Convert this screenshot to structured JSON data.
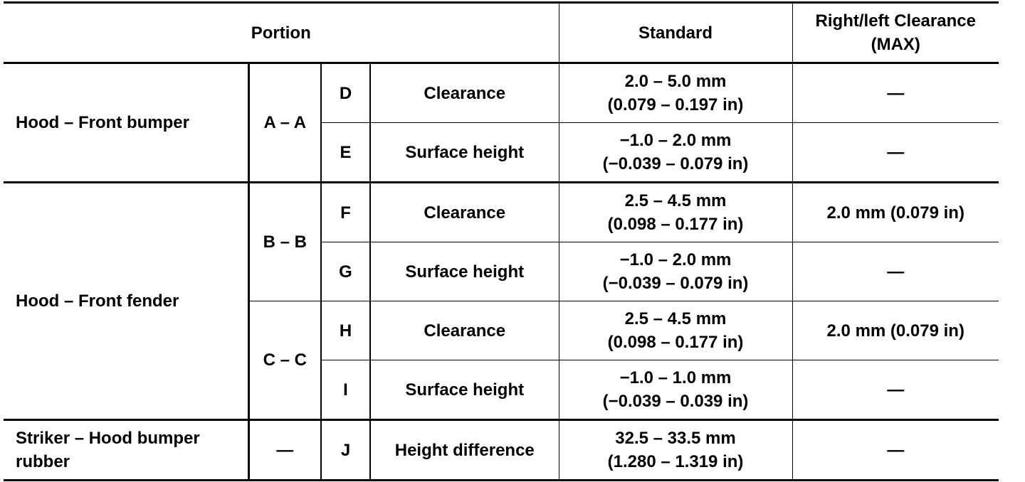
{
  "header": {
    "portion": "Portion",
    "standard": "Standard",
    "clearance_max": "Right/left Clearance (MAX)"
  },
  "groups": [
    {
      "portion": "Hood – Front bumper",
      "sections": [
        {
          "section": "A – A",
          "items": [
            {
              "code": "D",
              "item": "Clearance",
              "standard_mm": "2.0 – 5.0 mm",
              "standard_in": "(0.079 – 0.197 in)",
              "max": "—"
            },
            {
              "code": "E",
              "item": "Surface height",
              "standard_mm": "−1.0 – 2.0 mm",
              "standard_in": "(−0.039 – 0.079 in)",
              "max": "—"
            }
          ]
        }
      ]
    },
    {
      "portion": "Hood – Front fender",
      "sections": [
        {
          "section": "B – B",
          "items": [
            {
              "code": "F",
              "item": "Clearance",
              "standard_mm": "2.5 – 4.5 mm",
              "standard_in": "(0.098 – 0.177 in)",
              "max": "2.0 mm (0.079 in)"
            },
            {
              "code": "G",
              "item": "Surface height",
              "standard_mm": "−1.0 – 2.0 mm",
              "standard_in": "(−0.039 – 0.079 in)",
              "max": "—"
            }
          ]
        },
        {
          "section": "C – C",
          "items": [
            {
              "code": "H",
              "item": "Clearance",
              "standard_mm": "2.5 – 4.5 mm",
              "standard_in": "(0.098 – 0.177 in)",
              "max": "2.0 mm (0.079 in)"
            },
            {
              "code": "I",
              "item": "Surface height",
              "standard_mm": "−1.0 – 1.0 mm",
              "standard_in": "(−0.039 – 0.039 in)",
              "max": "—"
            }
          ]
        }
      ]
    },
    {
      "portion": "Striker – Hood bumper rubber",
      "sections": [
        {
          "section": "—",
          "items": [
            {
              "code": "J",
              "item": "Height difference",
              "standard_mm": "32.5 – 33.5 mm",
              "standard_in": "(1.280 – 1.319 in)",
              "max": "—"
            }
          ]
        }
      ]
    }
  ]
}
